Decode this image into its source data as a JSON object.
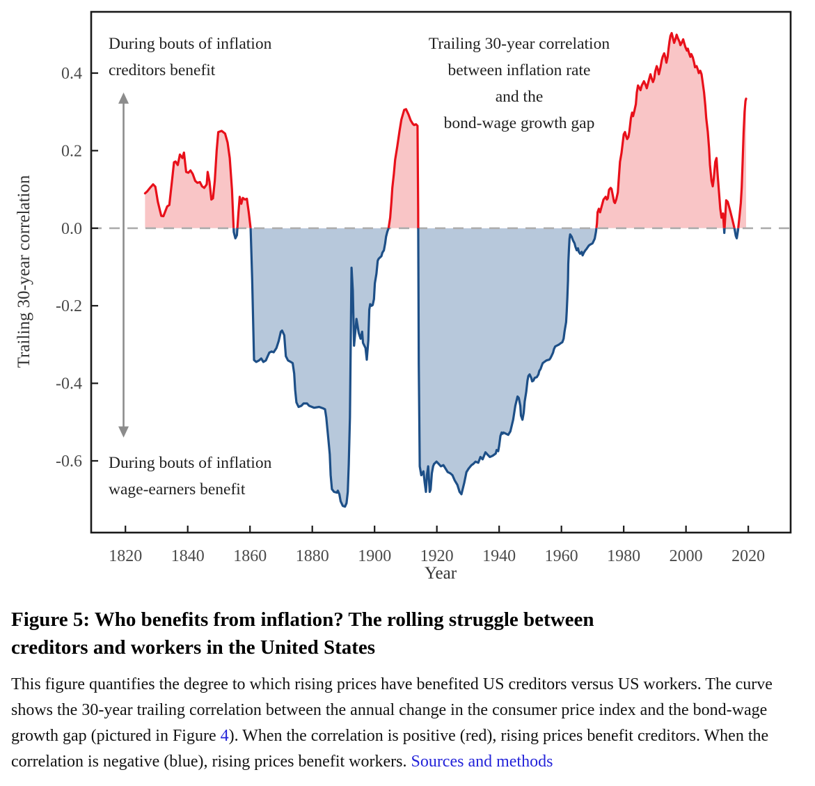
{
  "figure": {
    "title_line1": "Figure 5: Who benefits from inflation? The rolling struggle between",
    "title_line2": "creditors and workers in the United States",
    "body_part1": "This figure quantifies the degree to which rising prices have benefited US creditors versus US workers. The curve shows the 30-year trailing correlation between the annual change in the consumer price index and the bond-wage growth gap (pictured in Figure ",
    "figure4_link": "4",
    "body_part2": "). When the correlation is positive (red), rising prices benefit creditors. When the correlation is negative (blue), rising prices benefit workers. ",
    "sources_link": "Sources and methods"
  },
  "annotations": {
    "creditors_line1": "During bouts of inflation",
    "creditors_line2": "creditors benefit",
    "center_line1": "Trailing 30-year correlation",
    "center_line2": "between inflation rate",
    "center_line3": "and the",
    "center_line4": "bond-wage growth gap",
    "workers_line1": "During bouts of inflation",
    "workers_line2": "wage-earners benefit"
  },
  "chart_data": {
    "type": "area",
    "title": "Trailing 30-year correlation between inflation rate and the bond-wage growth gap",
    "xlabel": "Year",
    "ylabel": "Trailing 30-year correlation",
    "x_ticks": [
      1820,
      1840,
      1860,
      1880,
      1900,
      1920,
      1940,
      1960,
      1980,
      2000,
      2020
    ],
    "y_ticks": [
      0.4,
      0.2,
      0.0,
      -0.2,
      -0.4,
      -0.6
    ],
    "xlim": [
      1809.0,
      2033.6
    ],
    "ylim": [
      -0.785,
      0.558
    ],
    "zero_line_dashed": true,
    "legend": "none",
    "colors": {
      "positive_line": "#e8101a",
      "positive_fill": "#f9c5c6",
      "negative_line": "#1d4f87",
      "negative_fill": "#b7c8db",
      "zero_line": "#adadad",
      "frame": "#1a1a1a",
      "arrow": "#8c8c8c"
    },
    "range_arrow": {
      "year": 1819.4,
      "top": 0.35,
      "bottom": -0.54
    },
    "series": [
      [
        1826.3,
        0.09
      ],
      [
        1827,
        0.095
      ],
      [
        1828,
        0.105
      ],
      [
        1828.9,
        0.113
      ],
      [
        1829.6,
        0.107
      ],
      [
        1830.4,
        0.068
      ],
      [
        1831.5,
        0.032
      ],
      [
        1832.2,
        0.031
      ],
      [
        1833.4,
        0.056
      ],
      [
        1834.1,
        0.06
      ],
      [
        1835,
        0.125
      ],
      [
        1835.6,
        0.17
      ],
      [
        1836.1,
        0.172
      ],
      [
        1836.8,
        0.163
      ],
      [
        1837.5,
        0.19
      ],
      [
        1838.3,
        0.181
      ],
      [
        1838.8,
        0.195
      ],
      [
        1839.5,
        0.145
      ],
      [
        1840.2,
        0.143
      ],
      [
        1840.9,
        0.149
      ],
      [
        1841.6,
        0.14
      ],
      [
        1842.4,
        0.122
      ],
      [
        1843.1,
        0.117
      ],
      [
        1843.9,
        0.119
      ],
      [
        1844.6,
        0.108
      ],
      [
        1845.3,
        0.104
      ],
      [
        1846.1,
        0.113
      ],
      [
        1846.4,
        0.145
      ],
      [
        1847,
        0.12
      ],
      [
        1847.6,
        0.074
      ],
      [
        1848.1,
        0.077
      ],
      [
        1848.7,
        0.122
      ],
      [
        1849.3,
        0.2
      ],
      [
        1849.8,
        0.248
      ],
      [
        1850.9,
        0.251
      ],
      [
        1852,
        0.244
      ],
      [
        1852.8,
        0.221
      ],
      [
        1853.5,
        0.181
      ],
      [
        1854.2,
        0.1
      ],
      [
        1854.8,
        -0.01
      ],
      [
        1855.3,
        -0.026
      ],
      [
        1855.8,
        -0.018
      ],
      [
        1856.3,
        0.04
      ],
      [
        1856.7,
        0.081
      ],
      [
        1857.2,
        0.063
      ],
      [
        1857.7,
        0.078
      ],
      [
        1858.4,
        0.074
      ],
      [
        1859,
        0.076
      ],
      [
        1859.6,
        0.041
      ],
      [
        1860.2,
        0
      ],
      [
        1860.7,
        -0.13
      ],
      [
        1861.3,
        -0.34
      ],
      [
        1862,
        -0.345
      ],
      [
        1862.9,
        -0.341
      ],
      [
        1863.6,
        -0.336
      ],
      [
        1864.3,
        -0.345
      ],
      [
        1865.1,
        -0.341
      ],
      [
        1866.2,
        -0.321
      ],
      [
        1866.9,
        -0.318
      ],
      [
        1867.6,
        -0.32
      ],
      [
        1868.5,
        -0.309
      ],
      [
        1869.2,
        -0.291
      ],
      [
        1869.9,
        -0.267
      ],
      [
        1870.3,
        -0.264
      ],
      [
        1871,
        -0.276
      ],
      [
        1871.5,
        -0.33
      ],
      [
        1872.2,
        -0.341
      ],
      [
        1873.1,
        -0.345
      ],
      [
        1873.7,
        -0.348
      ],
      [
        1874.2,
        -0.375
      ],
      [
        1874.5,
        -0.417
      ],
      [
        1874.9,
        -0.449
      ],
      [
        1875.6,
        -0.461
      ],
      [
        1876.5,
        -0.458
      ],
      [
        1877.2,
        -0.452
      ],
      [
        1878.3,
        -0.452
      ],
      [
        1879,
        -0.458
      ],
      [
        1880.6,
        -0.463
      ],
      [
        1882.2,
        -0.461
      ],
      [
        1883.6,
        -0.465
      ],
      [
        1884.1,
        -0.467
      ],
      [
        1884.5,
        -0.488
      ],
      [
        1885.2,
        -0.548
      ],
      [
        1885.6,
        -0.583
      ],
      [
        1885.9,
        -0.637
      ],
      [
        1886.3,
        -0.673
      ],
      [
        1887,
        -0.68
      ],
      [
        1887.9,
        -0.682
      ],
      [
        1888.2,
        -0.677
      ],
      [
        1888.7,
        -0.686
      ],
      [
        1889.1,
        -0.704
      ],
      [
        1889.8,
        -0.716
      ],
      [
        1890.5,
        -0.718
      ],
      [
        1891,
        -0.709
      ],
      [
        1891.4,
        -0.68
      ],
      [
        1891.7,
        -0.609
      ],
      [
        1892.1,
        -0.488
      ],
      [
        1892.4,
        -0.25
      ],
      [
        1892.6,
        -0.102
      ],
      [
        1893,
        -0.16
      ],
      [
        1893.4,
        -0.303
      ],
      [
        1894.2,
        -0.234
      ],
      [
        1894.9,
        -0.27
      ],
      [
        1895.5,
        -0.285
      ],
      [
        1896,
        -0.267
      ],
      [
        1896.3,
        -0.296
      ],
      [
        1897.1,
        -0.309
      ],
      [
        1897.5,
        -0.339
      ],
      [
        1898,
        -0.29
      ],
      [
        1898.3,
        -0.21
      ],
      [
        1898.6,
        -0.196
      ],
      [
        1899,
        -0.2
      ],
      [
        1899.4,
        -0.198
      ],
      [
        1899.8,
        -0.183
      ],
      [
        1900.1,
        -0.142
      ],
      [
        1900.6,
        -0.117
      ],
      [
        1901,
        -0.084
      ],
      [
        1901.3,
        -0.079
      ],
      [
        1901.8,
        -0.075
      ],
      [
        1902.2,
        -0.072
      ],
      [
        1902.5,
        -0.063
      ],
      [
        1903,
        -0.057
      ],
      [
        1903.4,
        -0.039
      ],
      [
        1903.7,
        -0.022
      ],
      [
        1904.1,
        -0.009
      ],
      [
        1904.5,
        0
      ],
      [
        1905,
        0.027
      ],
      [
        1905.4,
        0.068
      ],
      [
        1905.7,
        0.104
      ],
      [
        1906.2,
        0.14
      ],
      [
        1906.6,
        0.176
      ],
      [
        1907.3,
        0.212
      ],
      [
        1908,
        0.25
      ],
      [
        1908.6,
        0.28
      ],
      [
        1909.5,
        0.305
      ],
      [
        1910.1,
        0.307
      ],
      [
        1910.9,
        0.293
      ],
      [
        1911.6,
        0.278
      ],
      [
        1912.3,
        0.269
      ],
      [
        1912.7,
        0.266
      ],
      [
        1913.3,
        0.268
      ],
      [
        1913.8,
        0.264
      ],
      [
        1914,
        0.05
      ],
      [
        1914.2,
        -0.35
      ],
      [
        1914.5,
        -0.614
      ],
      [
        1915,
        -0.637
      ],
      [
        1915.7,
        -0.627
      ],
      [
        1916.1,
        -0.656
      ],
      [
        1916.5,
        -0.68
      ],
      [
        1916.8,
        -0.637
      ],
      [
        1917.2,
        -0.614
      ],
      [
        1917.7,
        -0.68
      ],
      [
        1918,
        -0.674
      ],
      [
        1918.4,
        -0.632
      ],
      [
        1918.8,
        -0.614
      ],
      [
        1919.1,
        -0.608
      ],
      [
        1919.9,
        -0.602
      ],
      [
        1920.6,
        -0.608
      ],
      [
        1921.3,
        -0.614
      ],
      [
        1922.1,
        -0.611
      ],
      [
        1922.8,
        -0.62
      ],
      [
        1923.5,
        -0.629
      ],
      [
        1924.3,
        -0.632
      ],
      [
        1925,
        -0.637
      ],
      [
        1925.7,
        -0.65
      ],
      [
        1926.6,
        -0.662
      ],
      [
        1927.3,
        -0.68
      ],
      [
        1927.9,
        -0.686
      ],
      [
        1928.8,
        -0.656
      ],
      [
        1929.5,
        -0.629
      ],
      [
        1930.2,
        -0.62
      ],
      [
        1931.1,
        -0.611
      ],
      [
        1931.7,
        -0.608
      ],
      [
        1932.4,
        -0.602
      ],
      [
        1933.3,
        -0.605
      ],
      [
        1934,
        -0.59
      ],
      [
        1934.7,
        -0.596
      ],
      [
        1935.6,
        -0.578
      ],
      [
        1936.3,
        -0.584
      ],
      [
        1937,
        -0.59
      ],
      [
        1937.9,
        -0.587
      ],
      [
        1938.9,
        -0.581
      ],
      [
        1939.2,
        -0.572
      ],
      [
        1939.7,
        -0.575
      ],
      [
        1940,
        -0.561
      ],
      [
        1940.4,
        -0.536
      ],
      [
        1940.8,
        -0.527
      ],
      [
        1941.1,
        -0.53
      ],
      [
        1941.4,
        -0.527
      ],
      [
        1942.2,
        -0.53
      ],
      [
        1942.9,
        -0.533
      ],
      [
        1943.6,
        -0.524
      ],
      [
        1944.5,
        -0.494
      ],
      [
        1945.2,
        -0.458
      ],
      [
        1945.9,
        -0.434
      ],
      [
        1946.3,
        -0.438
      ],
      [
        1946.8,
        -0.458
      ],
      [
        1947,
        -0.483
      ],
      [
        1947.5,
        -0.494
      ],
      [
        1947.9,
        -0.476
      ],
      [
        1948.2,
        -0.447
      ],
      [
        1948.7,
        -0.422
      ],
      [
        1949.1,
        -0.393
      ],
      [
        1949.4,
        -0.381
      ],
      [
        1949.8,
        -0.377
      ],
      [
        1950.3,
        -0.386
      ],
      [
        1950.6,
        -0.395
      ],
      [
        1951,
        -0.393
      ],
      [
        1951.4,
        -0.386
      ],
      [
        1952.1,
        -0.384
      ],
      [
        1952.6,
        -0.377
      ],
      [
        1952.9,
        -0.368
      ],
      [
        1953.3,
        -0.363
      ],
      [
        1953.7,
        -0.354
      ],
      [
        1954,
        -0.348
      ],
      [
        1954.5,
        -0.345
      ],
      [
        1955.2,
        -0.341
      ],
      [
        1956.1,
        -0.339
      ],
      [
        1956.4,
        -0.336
      ],
      [
        1956.8,
        -0.33
      ],
      [
        1957.3,
        -0.321
      ],
      [
        1957.6,
        -0.312
      ],
      [
        1958,
        -0.305
      ],
      [
        1958.5,
        -0.303
      ],
      [
        1959.2,
        -0.3
      ],
      [
        1959.9,
        -0.296
      ],
      [
        1960.3,
        -0.294
      ],
      [
        1960.7,
        -0.285
      ],
      [
        1961,
        -0.267
      ],
      [
        1961.5,
        -0.242
      ],
      [
        1961.7,
        -0.214
      ],
      [
        1961.9,
        -0.178
      ],
      [
        1962.1,
        -0.135
      ],
      [
        1962.2,
        -0.093
      ],
      [
        1962.4,
        -0.057
      ],
      [
        1962.6,
        -0.027
      ],
      [
        1962.8,
        -0.016
      ],
      [
        1963.3,
        -0.022
      ],
      [
        1963.7,
        -0.031
      ],
      [
        1964.2,
        -0.039
      ],
      [
        1964.5,
        -0.048
      ],
      [
        1964.9,
        -0.057
      ],
      [
        1965.3,
        -0.052
      ],
      [
        1965.6,
        -0.061
      ],
      [
        1966,
        -0.066
      ],
      [
        1966.5,
        -0.061
      ],
      [
        1966.8,
        -0.07
      ],
      [
        1967.2,
        -0.063
      ],
      [
        1967.7,
        -0.057
      ],
      [
        1968,
        -0.054
      ],
      [
        1968.8,
        -0.045
      ],
      [
        1969.1,
        -0.043
      ],
      [
        1970,
        -0.039
      ],
      [
        1970.7,
        -0.027
      ],
      [
        1971.1,
        -0.009
      ],
      [
        1971.4,
        0.012
      ],
      [
        1971.6,
        0.041
      ],
      [
        1972,
        0.05
      ],
      [
        1972.4,
        0.041
      ],
      [
        1973.5,
        0.074
      ],
      [
        1974.2,
        0.081
      ],
      [
        1974.6,
        0.074
      ],
      [
        1974.9,
        0.077
      ],
      [
        1975.3,
        0.099
      ],
      [
        1975.8,
        0.104
      ],
      [
        1976.1,
        0.101
      ],
      [
        1976.9,
        0.068
      ],
      [
        1977.2,
        0.065
      ],
      [
        1977.6,
        0.074
      ],
      [
        1978.1,
        0.092
      ],
      [
        1978.4,
        0.126
      ],
      [
        1978.8,
        0.171
      ],
      [
        1979.3,
        0.194
      ],
      [
        1979.6,
        0.215
      ],
      [
        1980,
        0.242
      ],
      [
        1980.4,
        0.248
      ],
      [
        1980.7,
        0.239
      ],
      [
        1981.1,
        0.23
      ],
      [
        1981.5,
        0.235
      ],
      [
        1981.8,
        0.248
      ],
      [
        1982.3,
        0.284
      ],
      [
        1982.7,
        0.298
      ],
      [
        1983,
        0.289
      ],
      [
        1983.4,
        0.302
      ],
      [
        1983.9,
        0.32
      ],
      [
        1984.2,
        0.35
      ],
      [
        1984.6,
        0.368
      ],
      [
        1985.1,
        0.361
      ],
      [
        1985.4,
        0.356
      ],
      [
        1985.8,
        0.368
      ],
      [
        1986.5,
        0.379
      ],
      [
        1987,
        0.37
      ],
      [
        1987.4,
        0.361
      ],
      [
        1987.7,
        0.37
      ],
      [
        1988.2,
        0.386
      ],
      [
        1988.6,
        0.397
      ],
      [
        1988.9,
        0.388
      ],
      [
        1989.4,
        0.377
      ],
      [
        1989.8,
        0.386
      ],
      [
        1990.1,
        0.404
      ],
      [
        1990.6,
        0.418
      ],
      [
        1991,
        0.409
      ],
      [
        1991.3,
        0.397
      ],
      [
        1991.8,
        0.415
      ],
      [
        1992.2,
        0.433
      ],
      [
        1992.5,
        0.442
      ],
      [
        1993,
        0.451
      ],
      [
        1993.4,
        0.44
      ],
      [
        1993.7,
        0.427
      ],
      [
        1994.1,
        0.442
      ],
      [
        1994.4,
        0.463
      ],
      [
        1994.7,
        0.481
      ],
      [
        1995,
        0.496
      ],
      [
        1995.4,
        0.503
      ],
      [
        1995.8,
        0.49
      ],
      [
        1996.2,
        0.478
      ],
      [
        1996.6,
        0.487
      ],
      [
        1997,
        0.499
      ],
      [
        1997.4,
        0.49
      ],
      [
        1997.9,
        0.481
      ],
      [
        1998.2,
        0.472
      ],
      [
        1998.6,
        0.478
      ],
      [
        1999.1,
        0.487
      ],
      [
        1999.4,
        0.478
      ],
      [
        1999.8,
        0.467
      ],
      [
        2000.3,
        0.458
      ],
      [
        2000.6,
        0.463
      ],
      [
        2001,
        0.451
      ],
      [
        2001.4,
        0.442
      ],
      [
        2001.7,
        0.449
      ],
      [
        2002.2,
        0.44
      ],
      [
        2002.6,
        0.427
      ],
      [
        2002.9,
        0.415
      ],
      [
        2003.4,
        0.418
      ],
      [
        2003.8,
        0.409
      ],
      [
        2004.1,
        0.4
      ],
      [
        2004.6,
        0.406
      ],
      [
        2005,
        0.397
      ],
      [
        2005.3,
        0.379
      ],
      [
        2005.8,
        0.35
      ],
      [
        2006.2,
        0.316
      ],
      [
        2006.5,
        0.284
      ],
      [
        2007,
        0.248
      ],
      [
        2007.4,
        0.206
      ],
      [
        2007.7,
        0.163
      ],
      [
        2008.2,
        0.122
      ],
      [
        2008.6,
        0.108
      ],
      [
        2008.9,
        0.127
      ],
      [
        2009.4,
        0.171
      ],
      [
        2009.8,
        0.181
      ],
      [
        2010.1,
        0.145
      ],
      [
        2010.6,
        0.092
      ],
      [
        2011,
        0.05
      ],
      [
        2011.4,
        0.027
      ],
      [
        2011.9,
        0.038
      ],
      [
        2012.3,
        -0.012
      ],
      [
        2012.9,
        0.072
      ],
      [
        2013.4,
        0.068
      ],
      [
        2014.1,
        0.048
      ],
      [
        2014.8,
        0.025
      ],
      [
        2015.5,
        0.002
      ],
      [
        2016,
        -0.02
      ],
      [
        2016.3,
        -0.026
      ],
      [
        2016.7,
        -0.005
      ],
      [
        2017.2,
        0.032
      ],
      [
        2017.6,
        0.065
      ],
      [
        2017.9,
        0.105
      ],
      [
        2018.2,
        0.175
      ],
      [
        2018.5,
        0.245
      ],
      [
        2018.8,
        0.3
      ],
      [
        2019.1,
        0.328
      ],
      [
        2019.3,
        0.334
      ]
    ]
  }
}
